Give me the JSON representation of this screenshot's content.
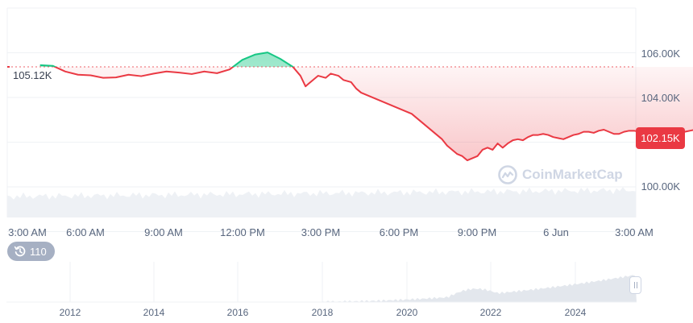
{
  "chart_data": [
    {
      "type": "area",
      "title": "",
      "xlabel": "",
      "ylabel": "",
      "x_ticks": [
        "3:00 AM",
        "6:00 AM",
        "9:00 AM",
        "12:00 PM",
        "3:00 PM",
        "6:00 PM",
        "9:00 PM",
        "6 Jun",
        "3:00 AM"
      ],
      "y_ticks": [
        "100.00K",
        "104.00K",
        "106.00K"
      ],
      "ylim": [
        98000,
        107900
      ],
      "reference_value": 105120,
      "reference_label": "105.12K",
      "current_label": "102.15K",
      "grid": true,
      "series": [
        {
          "x": [
            0.5,
            1.0,
            1.5,
            2.0,
            2.5,
            3.0,
            3.5,
            4.0,
            4.5,
            5.0,
            5.5,
            6.0,
            6.5,
            7.0,
            7.5,
            8.0,
            8.5,
            9.0,
            9.5,
            10.0,
            10.5,
            10.8,
            11.0,
            11.3,
            11.5,
            11.8,
            12.0,
            12.3,
            12.5,
            12.8,
            13.0,
            13.2,
            13.4,
            13.6,
            13.8,
            14.0,
            14.2,
            14.4,
            14.6,
            14.8,
            15.0,
            15.2,
            15.4,
            15.6,
            15.8,
            16.0,
            16.2,
            16.4,
            16.6,
            16.8,
            17.0,
            17.2,
            17.4,
            17.6,
            17.8,
            18.0,
            18.2,
            18.4,
            18.6,
            18.8,
            19.0,
            19.2,
            19.4,
            19.6,
            19.8,
            20.0,
            20.2,
            20.4,
            20.6,
            20.8,
            21.0,
            21.2,
            21.4,
            21.6,
            21.8,
            22.0,
            22.2,
            22.4,
            22.6,
            22.8,
            23.0,
            23.2,
            23.4,
            23.6,
            23.8,
            24.0,
            24.2,
            24.4,
            24.6,
            24.8,
            25.0,
            25.2,
            25.4,
            25.6,
            25.8,
            26.0,
            26.2,
            26.4,
            26.6,
            26.8,
            27.0
          ],
          "values": [
            105200,
            105170,
            104900,
            104750,
            104720,
            104600,
            104620,
            104750,
            104680,
            104800,
            104900,
            104850,
            104780,
            104900,
            104820,
            105000,
            105450,
            105700,
            105800,
            105500,
            105120,
            104700,
            104200,
            104500,
            104700,
            104600,
            104800,
            104700,
            104500,
            104400,
            104100,
            103900,
            103800,
            103700,
            103600,
            103500,
            103400,
            103300,
            103200,
            103100,
            103000,
            102900,
            102700,
            102500,
            102300,
            102100,
            101900,
            101700,
            101400,
            101200,
            101000,
            100900,
            100700,
            100800,
            100900,
            101200,
            101300,
            101200,
            101500,
            101300,
            101500,
            101650,
            101700,
            101650,
            101800,
            101900,
            101900,
            101950,
            101900,
            101800,
            101750,
            101700,
            101800,
            101900,
            101950,
            102050,
            102050,
            102000,
            102100,
            102150,
            102050,
            101950,
            101950,
            102050,
            102100,
            102100,
            102050,
            102100,
            102050,
            102000,
            101900,
            101850,
            101900,
            101950,
            102000,
            102050,
            102100,
            102150,
            102150,
            102150,
            102150
          ]
        }
      ]
    },
    {
      "type": "area",
      "title": "",
      "x_ticks": [
        "2012",
        "2014",
        "2016",
        "2018",
        "2020",
        "2022",
        "2024"
      ]
    }
  ],
  "badges": {
    "history_count": "110",
    "watermark": "CoinMarketCap"
  },
  "colors": {
    "up": "#16c784",
    "down": "#ea3943",
    "grid": "#eff2f5",
    "axis_text": "#58667e"
  }
}
